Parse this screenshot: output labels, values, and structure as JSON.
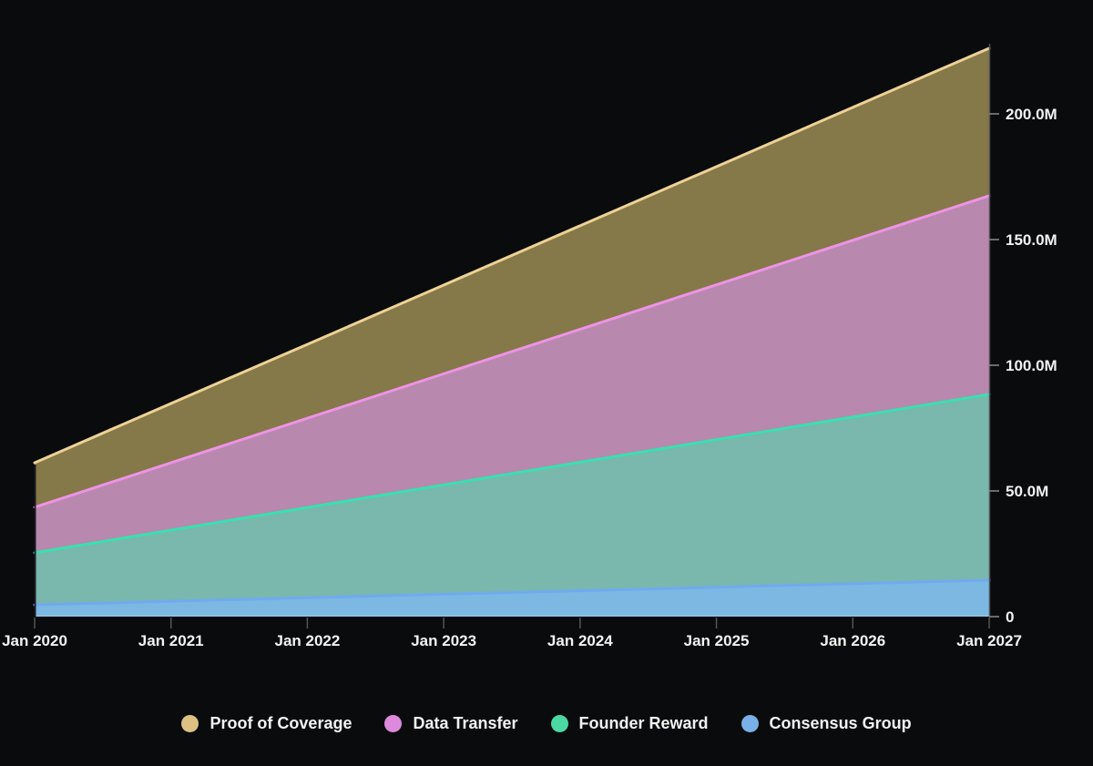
{
  "background_color": "#0a0b0d",
  "chart_data": {
    "type": "area",
    "stacked": true,
    "title": "",
    "grid": false,
    "legend_position": "bottom",
    "x_labels": [
      "Jan 2020",
      "Jan 2021",
      "Jan 2022",
      "Jan 2023",
      "Jan 2024",
      "Jan 2025",
      "Jan 2026",
      "Jan 2027"
    ],
    "y_axis": {
      "side": "right",
      "unit": "M",
      "range": [
        0,
        226
      ],
      "ticks": [
        {
          "value": 0,
          "label": "0"
        },
        {
          "value": 50,
          "label": "50.0M"
        },
        {
          "value": 100,
          "label": "100.0M"
        },
        {
          "value": 150,
          "label": "150.0M"
        },
        {
          "value": 200,
          "label": "200.0M"
        }
      ]
    },
    "values_unit": "millions",
    "series_stack_bottom_to_top": [
      {
        "name": "Consensus Group",
        "values": [
          4.7,
          6.1,
          7.5,
          8.9,
          10.3,
          11.7,
          13.1,
          14.5
        ],
        "line_color": "#6faaf0",
        "fill_color": "#7cb8e1"
      },
      {
        "name": "Founder Reward",
        "values": [
          20.7,
          28.3,
          35.9,
          43.5,
          51.1,
          58.7,
          66.3,
          73.9
        ],
        "line_color": "#38e1af",
        "fill_color": "#7ab7ad"
      },
      {
        "name": "Data Transfer",
        "values": [
          18.1,
          26.8,
          35.5,
          44.2,
          52.9,
          61.6,
          70.3,
          79.0
        ],
        "line_color": "#ee93e6",
        "fill_color": "#b888ae"
      },
      {
        "name": "Proof of Coverage",
        "values": [
          17.7,
          23.6,
          29.4,
          35.3,
          41.2,
          47.0,
          52.9,
          58.7
        ],
        "line_color": "#eed295",
        "fill_color": "#857849"
      }
    ]
  },
  "axis_style": {
    "label_color": "#f2f2f2",
    "tick_color": "#8a8a8a",
    "x_tick_color": "#55555a",
    "axis_line_color": "#4d4e55",
    "plot_left_edge_color": "#1a1a20",
    "baseline_highlight": "rgba(200,225,245,0.35)"
  },
  "legend": {
    "items": [
      {
        "label": "Proof of Coverage",
        "color": "#ddc083"
      },
      {
        "label": "Data Transfer",
        "color": "#de8adc"
      },
      {
        "label": "Founder Reward",
        "color": "#4bd8a2"
      },
      {
        "label": "Consensus Group",
        "color": "#7ab0e8"
      }
    ]
  }
}
